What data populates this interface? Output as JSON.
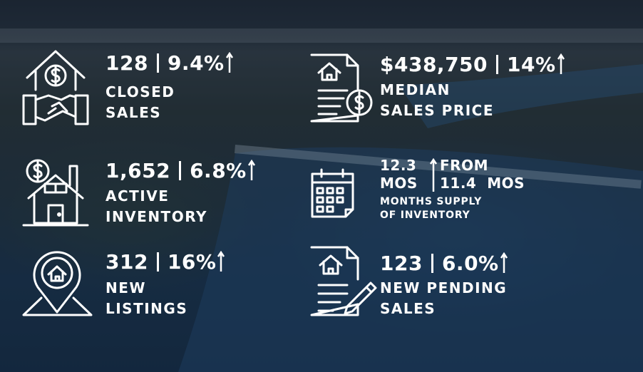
{
  "stats": [
    {
      "value": "128",
      "change": "9.4%",
      "label": [
        "CLOSED",
        "SALES"
      ]
    },
    {
      "value": "$438,750",
      "change": "14%",
      "label": [
        "MEDIAN",
        "SALES PRICE"
      ]
    },
    {
      "value": "1,652",
      "change": "6.8%",
      "label": [
        "ACTIVE",
        "INVENTORY"
      ]
    },
    {
      "value": "312",
      "change": "16%",
      "label": [
        "NEW",
        "LISTINGS"
      ]
    },
    {
      "value": "123",
      "change": "6.0%",
      "label": [
        "NEW PENDING",
        "SALES"
      ]
    }
  ],
  "months_supply": {
    "value": "12.3",
    "unit": "MOS",
    "from_label": "FROM",
    "from_value": "11.4  MOS",
    "label": [
      "MONTHS SUPPLY",
      "OF INVENTORY"
    ]
  }
}
